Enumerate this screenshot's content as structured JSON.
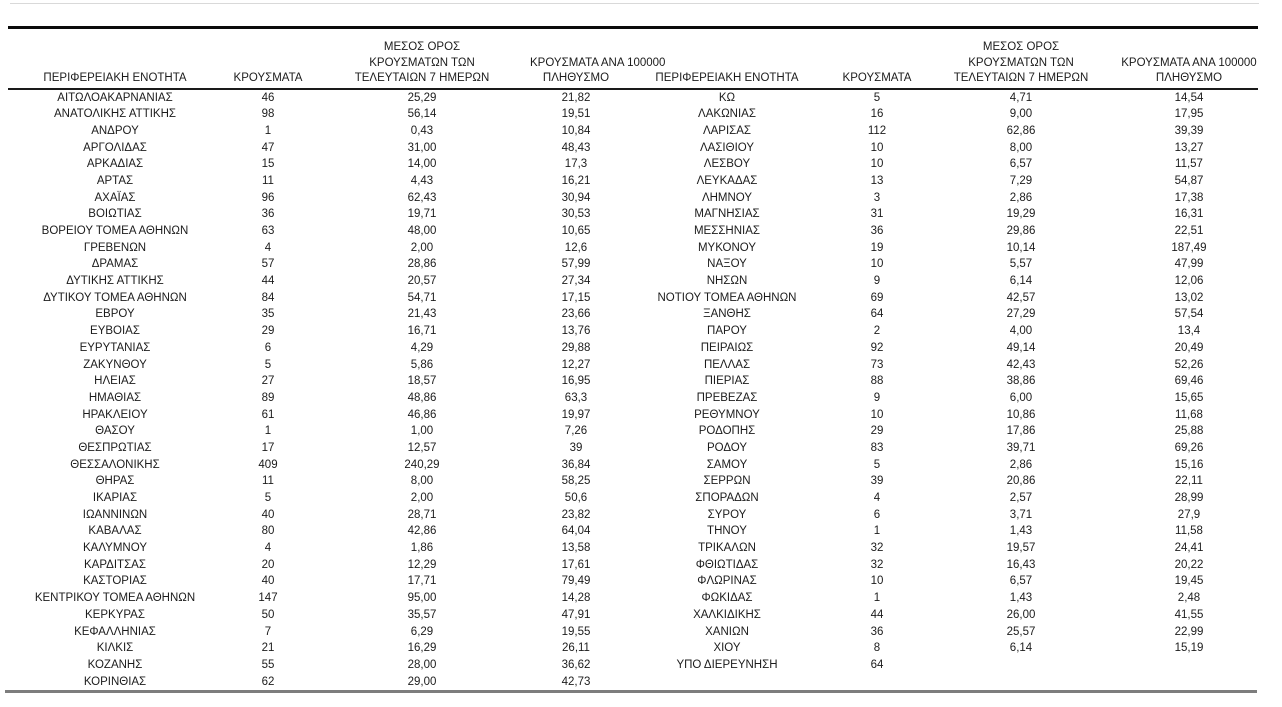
{
  "headers": {
    "region": "ΠΕΡΙΦΕΡΕΙΑΚΗ ΕΝΟΤΗΤΑ",
    "cases": "ΚΡΟΥΣΜΑΤΑ",
    "avg7_lines": [
      "ΜΕΣΟΣ ΟΡΟΣ",
      "ΚΡΟΥΣΜΑΤΩΝ ΤΩΝ",
      "ΤΕΛΕΥΤΑΙΩΝ 7 ΗΜΕΡΩΝ"
    ],
    "per100k_lines": [
      "ΚΡΟΥΣΜΑΤΑ ΑΝΑ 100000",
      "ΠΛΗΘΥΣΜΟ"
    ]
  },
  "left_table_rows": [
    [
      "ΑΙΤΩΛΟΑΚΑΡΝΑΝΙΑΣ",
      "46",
      "25,29",
      "21,82"
    ],
    [
      "ΑΝΑΤΟΛΙΚΗΣ ΑΤΤΙΚΗΣ",
      "98",
      "56,14",
      "19,51"
    ],
    [
      "ΑΝΔΡΟΥ",
      "1",
      "0,43",
      "10,84"
    ],
    [
      "ΑΡΓΟΛΙΔΑΣ",
      "47",
      "31,00",
      "48,43"
    ],
    [
      "ΑΡΚΑΔΙΑΣ",
      "15",
      "14,00",
      "17,3"
    ],
    [
      "ΑΡΤΑΣ",
      "11",
      "4,43",
      "16,21"
    ],
    [
      "ΑΧΑΪΑΣ",
      "96",
      "62,43",
      "30,94"
    ],
    [
      "ΒΟΙΩΤΙΑΣ",
      "36",
      "19,71",
      "30,53"
    ],
    [
      "ΒΟΡΕΙΟΥ ΤΟΜΕΑ ΑΘΗΝΩΝ",
      "63",
      "48,00",
      "10,65"
    ],
    [
      "ΓΡΕΒΕΝΩΝ",
      "4",
      "2,00",
      "12,6"
    ],
    [
      "ΔΡΑΜΑΣ",
      "57",
      "28,86",
      "57,99"
    ],
    [
      "ΔΥΤΙΚΗΣ ΑΤΤΙΚΗΣ",
      "44",
      "20,57",
      "27,34"
    ],
    [
      "ΔΥΤΙΚΟΥ ΤΟΜΕΑ ΑΘΗΝΩΝ",
      "84",
      "54,71",
      "17,15"
    ],
    [
      "ΕΒΡΟΥ",
      "35",
      "21,43",
      "23,66"
    ],
    [
      "ΕΥΒΟΙΑΣ",
      "29",
      "16,71",
      "13,76"
    ],
    [
      "ΕΥΡΥΤΑΝΙΑΣ",
      "6",
      "4,29",
      "29,88"
    ],
    [
      "ΖΑΚΥΝΘΟΥ",
      "5",
      "5,86",
      "12,27"
    ],
    [
      "ΗΛΕΙΑΣ",
      "27",
      "18,57",
      "16,95"
    ],
    [
      "ΗΜΑΘΙΑΣ",
      "89",
      "48,86",
      "63,3"
    ],
    [
      "ΗΡΑΚΛΕΙΟΥ",
      "61",
      "46,86",
      "19,97"
    ],
    [
      "ΘΑΣΟΥ",
      "1",
      "1,00",
      "7,26"
    ],
    [
      "ΘΕΣΠΡΩΤΙΑΣ",
      "17",
      "12,57",
      "39"
    ],
    [
      "ΘΕΣΣΑΛΟΝΙΚΗΣ",
      "409",
      "240,29",
      "36,84"
    ],
    [
      "ΘΗΡΑΣ",
      "11",
      "8,00",
      "58,25"
    ],
    [
      "ΙΚΑΡΙΑΣ",
      "5",
      "2,00",
      "50,6"
    ],
    [
      "ΙΩΑΝΝΙΝΩΝ",
      "40",
      "28,71",
      "23,82"
    ],
    [
      "ΚΑΒΑΛΑΣ",
      "80",
      "42,86",
      "64,04"
    ],
    [
      "ΚΑΛΥΜΝΟΥ",
      "4",
      "1,86",
      "13,58"
    ],
    [
      "ΚΑΡΔΙΤΣΑΣ",
      "20",
      "12,29",
      "17,61"
    ],
    [
      "ΚΑΣΤΟΡΙΑΣ",
      "40",
      "17,71",
      "79,49"
    ],
    [
      "ΚΕΝΤΡΙΚΟΥ ΤΟΜΕΑ ΑΘΗΝΩΝ",
      "147",
      "95,00",
      "14,28"
    ],
    [
      "ΚΕΡΚΥΡΑΣ",
      "50",
      "35,57",
      "47,91"
    ],
    [
      "ΚΕΦΑΛΛΗΝΙΑΣ",
      "7",
      "6,29",
      "19,55"
    ],
    [
      "ΚΙΛΚΙΣ",
      "21",
      "16,29",
      "26,11"
    ],
    [
      "ΚΟΖΑΝΗΣ",
      "55",
      "28,00",
      "36,62"
    ],
    [
      "ΚΟΡΙΝΘΙΑΣ",
      "62",
      "29,00",
      "42,73"
    ]
  ],
  "right_table_rows": [
    [
      "ΚΩ",
      "5",
      "4,71",
      "14,54"
    ],
    [
      "ΛΑΚΩΝΙΑΣ",
      "16",
      "9,00",
      "17,95"
    ],
    [
      "ΛΑΡΙΣΑΣ",
      "112",
      "62,86",
      "39,39"
    ],
    [
      "ΛΑΣΙΘΙΟΥ",
      "10",
      "8,00",
      "13,27"
    ],
    [
      "ΛΕΣΒΟΥ",
      "10",
      "6,57",
      "11,57"
    ],
    [
      "ΛΕΥΚΑΔΑΣ",
      "13",
      "7,29",
      "54,87"
    ],
    [
      "ΛΗΜΝΟΥ",
      "3",
      "2,86",
      "17,38"
    ],
    [
      "ΜΑΓΝΗΣΙΑΣ",
      "31",
      "19,29",
      "16,31"
    ],
    [
      "ΜΕΣΣΗΝΙΑΣ",
      "36",
      "29,86",
      "22,51"
    ],
    [
      "ΜΥΚΟΝΟΥ",
      "19",
      "10,14",
      "187,49"
    ],
    [
      "ΝΑΞΟΥ",
      "10",
      "5,57",
      "47,99"
    ],
    [
      "ΝΗΣΩΝ",
      "9",
      "6,14",
      "12,06"
    ],
    [
      "ΝΟΤΙΟΥ ΤΟΜΕΑ ΑΘΗΝΩΝ",
      "69",
      "42,57",
      "13,02"
    ],
    [
      "ΞΑΝΘΗΣ",
      "64",
      "27,29",
      "57,54"
    ],
    [
      "ΠΑΡΟΥ",
      "2",
      "4,00",
      "13,4"
    ],
    [
      "ΠΕΙΡΑΙΩΣ",
      "92",
      "49,14",
      "20,49"
    ],
    [
      "ΠΕΛΛΑΣ",
      "73",
      "42,43",
      "52,26"
    ],
    [
      "ΠΙΕΡΙΑΣ",
      "88",
      "38,86",
      "69,46"
    ],
    [
      "ΠΡΕΒΕΖΑΣ",
      "9",
      "6,00",
      "15,65"
    ],
    [
      "ΡΕΘΥΜΝΟΥ",
      "10",
      "10,86",
      "11,68"
    ],
    [
      "ΡΟΔΟΠΗΣ",
      "29",
      "17,86",
      "25,88"
    ],
    [
      "ΡΟΔΟΥ",
      "83",
      "39,71",
      "69,26"
    ],
    [
      "ΣΑΜΟΥ",
      "5",
      "2,86",
      "15,16"
    ],
    [
      "ΣΕΡΡΩΝ",
      "39",
      "20,86",
      "22,11"
    ],
    [
      "ΣΠΟΡΑΔΩΝ",
      "4",
      "2,57",
      "28,99"
    ],
    [
      "ΣΥΡΟΥ",
      "6",
      "3,71",
      "27,9"
    ],
    [
      "ΤΗΝΟΥ",
      "1",
      "1,43",
      "11,58"
    ],
    [
      "ΤΡΙΚΑΛΩΝ",
      "32",
      "19,57",
      "24,41"
    ],
    [
      "ΦΘΙΩΤΙΔΑΣ",
      "32",
      "16,43",
      "20,22"
    ],
    [
      "ΦΛΩΡΙΝΑΣ",
      "10",
      "6,57",
      "19,45"
    ],
    [
      "ΦΩΚΙΔΑΣ",
      "1",
      "1,43",
      "2,48"
    ],
    [
      "ΧΑΛΚΙΔΙΚΗΣ",
      "44",
      "26,00",
      "41,55"
    ],
    [
      "ΧΑΝΙΩΝ",
      "36",
      "25,57",
      "22,99"
    ],
    [
      "ΧΙΟΥ",
      "8",
      "6,14",
      "15,19"
    ],
    [
      "ΥΠΟ ΔΙΕΡΕΥΝΗΣΗ",
      "64",
      "",
      ""
    ]
  ]
}
